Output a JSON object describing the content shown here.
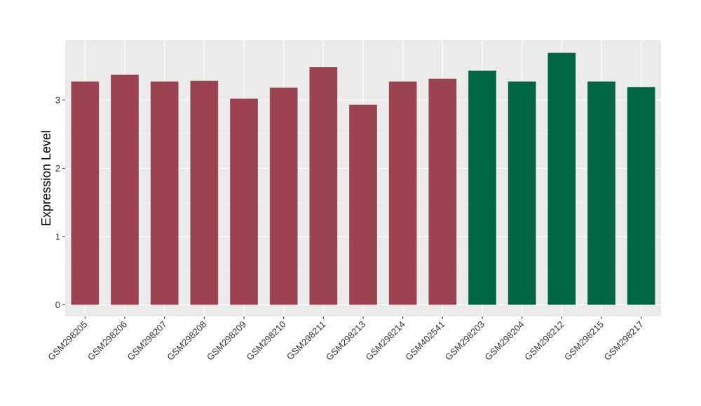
{
  "chart_data": {
    "type": "bar",
    "title": "",
    "xlabel": "",
    "ylabel": "Expression Level",
    "ylim": [
      -0.17,
      3.88
    ],
    "yticks": [
      0,
      1,
      2,
      3
    ],
    "grid": true,
    "legend": "none",
    "categories": [
      "GSM298205",
      "GSM298206",
      "GSM298207",
      "GSM298208",
      "GSM298209",
      "GSM298210",
      "GSM298211",
      "GSM298213",
      "GSM298214",
      "GSM402541",
      "GSM298203",
      "GSM298204",
      "GSM298212",
      "GSM298215",
      "GSM298217"
    ],
    "values": [
      3.27,
      3.37,
      3.27,
      3.28,
      3.02,
      3.18,
      3.48,
      2.93,
      3.27,
      3.31,
      3.43,
      3.27,
      3.69,
      3.27,
      3.19
    ],
    "bar_colors": [
      "#9b4350",
      "#9b4350",
      "#9b4350",
      "#9b4350",
      "#9b4350",
      "#9b4350",
      "#9b4350",
      "#9b4350",
      "#9b4350",
      "#9b4350",
      "#006644",
      "#006644",
      "#006644",
      "#006644",
      "#006644"
    ],
    "colors": {
      "panel_background": "#ebebeb",
      "grid_major": "#ffffff",
      "grid_minor": "#f5f5f5"
    }
  }
}
